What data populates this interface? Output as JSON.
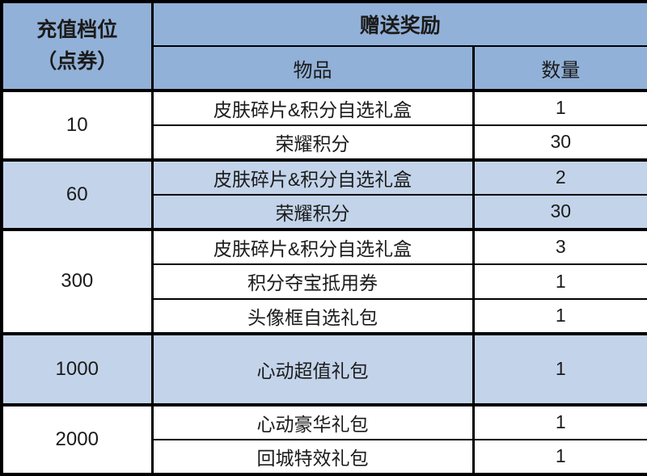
{
  "table": {
    "header": {
      "tier_line1": "充值档位",
      "tier_line2": "（点券）",
      "reward_label": "赠送奖励",
      "item_label": "物品",
      "qty_label": "数量"
    },
    "groups": [
      {
        "tier": "10",
        "shaded": false,
        "tall": false,
        "rows": [
          {
            "item": "皮肤碎片&积分自选礼盒",
            "qty": "1"
          },
          {
            "item": "荣耀积分",
            "qty": "30"
          }
        ]
      },
      {
        "tier": "60",
        "shaded": true,
        "tall": false,
        "rows": [
          {
            "item": "皮肤碎片&积分自选礼盒",
            "qty": "2"
          },
          {
            "item": "荣耀积分",
            "qty": "30"
          }
        ]
      },
      {
        "tier": "300",
        "shaded": false,
        "tall": false,
        "rows": [
          {
            "item": "皮肤碎片&积分自选礼盒",
            "qty": "3"
          },
          {
            "item": "积分夺宝抵用券",
            "qty": "1"
          },
          {
            "item": "头像框自选礼包",
            "qty": "1"
          }
        ]
      },
      {
        "tier": "1000",
        "shaded": true,
        "tall": true,
        "rows": [
          {
            "item": "心动超值礼包",
            "qty": "1"
          }
        ]
      },
      {
        "tier": "2000",
        "shaded": false,
        "tall": false,
        "rows": [
          {
            "item": "心动豪华礼包",
            "qty": "1"
          },
          {
            "item": "回城特效礼包",
            "qty": "1"
          }
        ]
      }
    ],
    "colors": {
      "header_bg": "#92b1d8",
      "shaded_row_bg": "#c3d4ea",
      "plain_row_bg": "#ffffff",
      "border": "#000000",
      "text": "#1b1b1b"
    }
  },
  "chart_data": {
    "type": "table",
    "title": "",
    "columns": [
      "充值档位（点券）",
      "物品",
      "数量"
    ],
    "rows": [
      [
        "10",
        "皮肤碎片&积分自选礼盒",
        "1"
      ],
      [
        "10",
        "荣耀积分",
        "30"
      ],
      [
        "60",
        "皮肤碎片&积分自选礼盒",
        "2"
      ],
      [
        "60",
        "荣耀积分",
        "30"
      ],
      [
        "300",
        "皮肤碎片&积分自选礼盒",
        "3"
      ],
      [
        "300",
        "积分夺宝抵用券",
        "1"
      ],
      [
        "300",
        "头像框自选礼包",
        "1"
      ],
      [
        "1000",
        "心动超值礼包",
        "1"
      ],
      [
        "2000",
        "心动豪华礼包",
        "1"
      ],
      [
        "2000",
        "回城特效礼包",
        "1"
      ]
    ],
    "layout": {
      "grid": true,
      "merged_first_column": true,
      "legend": "none"
    }
  }
}
